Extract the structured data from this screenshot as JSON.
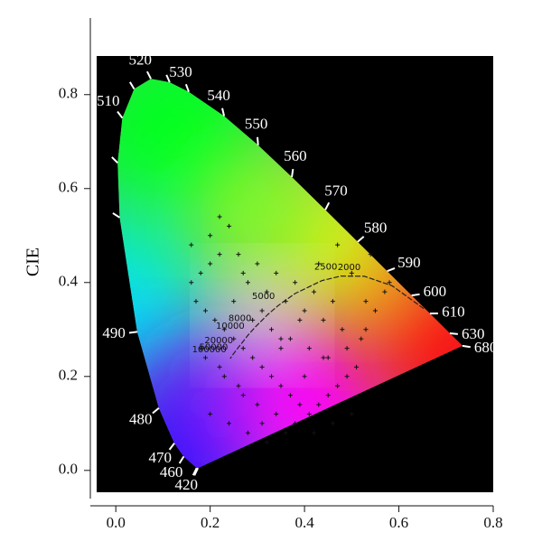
{
  "chart_data": {
    "type": "chromaticity",
    "ylabel": "CIE",
    "xlim": [
      -0.054,
      0.8
    ],
    "ylim": [
      -0.06,
      0.963
    ],
    "xticks": [
      {
        "value": 0,
        "label": "0.0"
      },
      0.2,
      0.4,
      0.6,
      0.8
    ],
    "yticks": [
      {
        "value": 0,
        "label": "0.0"
      },
      0.2,
      0.4,
      0.6,
      0.8
    ],
    "locus": {
      "labels": [
        null,
        "420",
        "460",
        "470",
        "480",
        "490",
        null,
        null,
        "510",
        null,
        "520",
        null,
        "530",
        "540",
        "550",
        "560",
        "570",
        "580",
        "590",
        "600",
        "610",
        "630",
        "680"
      ],
      "x": [
        0.1741,
        0.1714,
        0.144,
        0.1241,
        0.0913,
        0.0454,
        0.0082,
        0.0039,
        0.0139,
        0.0389,
        0.0743,
        0.1142,
        0.1547,
        0.2296,
        0.3016,
        0.3731,
        0.4441,
        0.5125,
        0.5752,
        0.627,
        0.6658,
        0.7079,
        0.7347
      ],
      "y": [
        0.005,
        0.0051,
        0.0297,
        0.0578,
        0.1327,
        0.295,
        0.5384,
        0.6548,
        0.7502,
        0.812,
        0.8338,
        0.8262,
        0.8059,
        0.7543,
        0.6923,
        0.6245,
        0.5547,
        0.4866,
        0.4242,
        0.3725,
        0.334,
        0.292,
        0.2653
      ]
    },
    "planckian": {
      "labels": [
        null,
        null,
        "2000",
        "2500",
        null,
        null,
        "5000",
        null,
        "8000",
        "10000",
        "20000",
        "50000",
        "100000"
      ],
      "x": [
        0.6528,
        0.5857,
        0.5267,
        0.477,
        0.4369,
        0.3805,
        0.3451,
        0.3221,
        0.2952,
        0.2807,
        0.2565,
        0.2454,
        0.2424
      ],
      "y": [
        0.3444,
        0.3931,
        0.4133,
        0.4137,
        0.4041,
        0.3768,
        0.3516,
        0.3318,
        0.3048,
        0.2884,
        0.2577,
        0.2425,
        0.238
      ]
    },
    "points": {
      "x": [
        0.16,
        0.18,
        0.2,
        0.22,
        0.17,
        0.19,
        0.21,
        0.23,
        0.25,
        0.27,
        0.29,
        0.31,
        0.33,
        0.35,
        0.37,
        0.39,
        0.41,
        0.43,
        0.45,
        0.47,
        0.49,
        0.51,
        0.53,
        0.55,
        0.57,
        0.16,
        0.2,
        0.24,
        0.28,
        0.32,
        0.36,
        0.4,
        0.44,
        0.48,
        0.52,
        0.18,
        0.22,
        0.26,
        0.3,
        0.34,
        0.38,
        0.42,
        0.46,
        0.5,
        0.2,
        0.24,
        0.28,
        0.32,
        0.36,
        0.4,
        0.44,
        0.22,
        0.26,
        0.3,
        0.34,
        0.38,
        0.42,
        0.46,
        0.5,
        0.54,
        0.58,
        0.25,
        0.29,
        0.33,
        0.37,
        0.41,
        0.45,
        0.49,
        0.53,
        0.27,
        0.31,
        0.35,
        0.39,
        0.43,
        0.47,
        0.19,
        0.23,
        0.27,
        0.31,
        0.35
      ],
      "y": [
        0.4,
        0.42,
        0.44,
        0.46,
        0.36,
        0.34,
        0.32,
        0.3,
        0.28,
        0.26,
        0.24,
        0.22,
        0.2,
        0.18,
        0.16,
        0.14,
        0.12,
        0.14,
        0.16,
        0.18,
        0.2,
        0.22,
        0.3,
        0.34,
        0.38,
        0.48,
        0.5,
        0.52,
        0.4,
        0.38,
        0.36,
        0.34,
        0.32,
        0.3,
        0.28,
        0.26,
        0.22,
        0.18,
        0.14,
        0.12,
        0.1,
        0.08,
        0.1,
        0.12,
        0.12,
        0.1,
        0.08,
        0.06,
        0.08,
        0.2,
        0.24,
        0.54,
        0.46,
        0.44,
        0.42,
        0.4,
        0.38,
        0.36,
        0.42,
        0.46,
        0.4,
        0.36,
        0.32,
        0.3,
        0.28,
        0.26,
        0.24,
        0.26,
        0.36,
        0.16,
        0.1,
        0.26,
        0.32,
        0.44,
        0.48,
        0.24,
        0.2,
        0.42,
        0.34,
        0.28
      ]
    }
  }
}
